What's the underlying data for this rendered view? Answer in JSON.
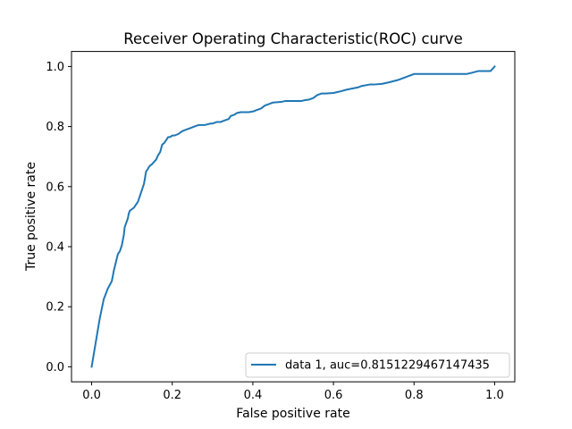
{
  "chart_data": {
    "type": "line",
    "title": "Receiver Operating Characteristic(ROC) curve",
    "xlabel": "False positive rate",
    "ylabel": "True positive rate",
    "xlim": [
      -0.05,
      1.05
    ],
    "ylim": [
      -0.05,
      1.05
    ],
    "xticks": [
      0.0,
      0.2,
      0.4,
      0.6,
      0.8,
      1.0
    ],
    "yticks": [
      0.0,
      0.2,
      0.4,
      0.6,
      0.8,
      1.0
    ],
    "xtick_labels": [
      "0.0",
      "0.2",
      "0.4",
      "0.6",
      "0.8",
      "1.0"
    ],
    "ytick_labels": [
      "0.0",
      "0.2",
      "0.4",
      "0.6",
      "0.8",
      "1.0"
    ],
    "grid": false,
    "legend_position": "lower-right",
    "series": [
      {
        "name": "data 1, auc=0.8151229467147435",
        "color": "#1f77b4",
        "x": [
          0.0,
          0.01,
          0.02,
          0.03,
          0.04,
          0.05,
          0.055,
          0.065,
          0.07,
          0.075,
          0.08,
          0.082,
          0.09,
          0.092,
          0.095,
          0.1,
          0.105,
          0.11,
          0.115,
          0.12,
          0.125,
          0.13,
          0.135,
          0.14,
          0.142,
          0.145,
          0.15,
          0.16,
          0.165,
          0.17,
          0.175,
          0.18,
          0.185,
          0.19,
          0.195,
          0.2,
          0.205,
          0.215,
          0.22,
          0.225,
          0.235,
          0.245,
          0.255,
          0.265,
          0.275,
          0.28,
          0.295,
          0.3,
          0.31,
          0.32,
          0.325,
          0.34,
          0.345,
          0.355,
          0.36,
          0.37,
          0.38,
          0.39,
          0.4,
          0.41,
          0.42,
          0.43,
          0.44,
          0.45,
          0.47,
          0.48,
          0.5,
          0.52,
          0.53,
          0.54,
          0.55,
          0.56,
          0.57,
          0.58,
          0.6,
          0.62,
          0.63,
          0.64,
          0.66,
          0.67,
          0.69,
          0.7,
          0.72,
          0.74,
          0.76,
          0.78,
          0.8,
          0.82,
          0.85,
          0.88,
          0.9,
          0.92,
          0.93,
          0.94,
          0.96,
          0.98,
          0.99,
          1.0
        ],
        "y": [
          0.0,
          0.08,
          0.16,
          0.225,
          0.26,
          0.285,
          0.32,
          0.375,
          0.385,
          0.405,
          0.44,
          0.465,
          0.495,
          0.51,
          0.52,
          0.525,
          0.53,
          0.54,
          0.55,
          0.57,
          0.59,
          0.61,
          0.65,
          0.66,
          0.665,
          0.67,
          0.675,
          0.69,
          0.705,
          0.715,
          0.74,
          0.745,
          0.755,
          0.765,
          0.765,
          0.77,
          0.77,
          0.775,
          0.78,
          0.785,
          0.79,
          0.795,
          0.8,
          0.805,
          0.805,
          0.805,
          0.81,
          0.81,
          0.815,
          0.815,
          0.818,
          0.825,
          0.835,
          0.84,
          0.845,
          0.848,
          0.848,
          0.848,
          0.85,
          0.855,
          0.86,
          0.87,
          0.875,
          0.88,
          0.882,
          0.885,
          0.885,
          0.885,
          0.888,
          0.89,
          0.895,
          0.905,
          0.91,
          0.91,
          0.912,
          0.918,
          0.922,
          0.925,
          0.93,
          0.935,
          0.94,
          0.94,
          0.942,
          0.948,
          0.955,
          0.965,
          0.975,
          0.975,
          0.975,
          0.975,
          0.975,
          0.975,
          0.975,
          0.978,
          0.985,
          0.985,
          0.985,
          1.0
        ]
      }
    ]
  }
}
